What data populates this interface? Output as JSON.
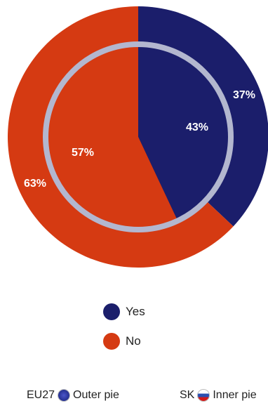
{
  "chart_data": {
    "type": "pie",
    "series": [
      {
        "name": "EU27",
        "ring": "outer",
        "slices": [
          {
            "category": "Yes",
            "value": 37
          },
          {
            "category": "No",
            "value": 63
          }
        ]
      },
      {
        "name": "SK",
        "ring": "inner",
        "slices": [
          {
            "category": "Yes",
            "value": 43
          },
          {
            "category": "No",
            "value": 57
          }
        ]
      }
    ],
    "labels": {
      "outer_yes": "37%",
      "outer_no": "63%",
      "inner_yes": "43%",
      "inner_no": "57%"
    },
    "legend": [
      {
        "label": "Yes",
        "color": "#1b1e6b"
      },
      {
        "label": "No",
        "color": "#d53a12"
      }
    ],
    "legend_position": "bottom"
  },
  "footer": {
    "eu_code": "EU27",
    "eu_text": "Outer pie",
    "sk_code": "SK",
    "sk_text": "Inner pie"
  },
  "colors": {
    "yes": "#1b1e6b",
    "no": "#d53a12",
    "ring": "#b3b7cf"
  },
  "icons": {
    "eu_flag": "eu-flag-icon",
    "sk_flag": "sk-flag-icon"
  }
}
